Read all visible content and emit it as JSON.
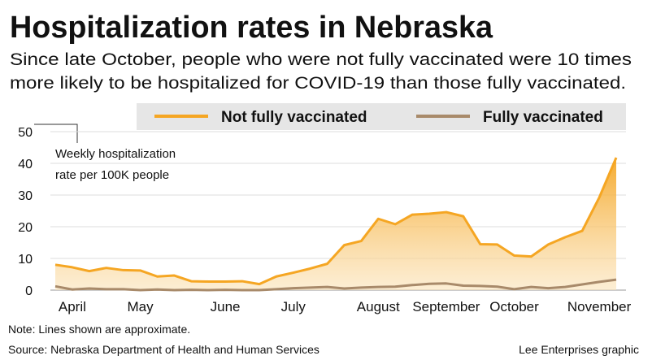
{
  "chart_data": {
    "type": "line",
    "title": "Hospitalization rates in Nebraska",
    "subtitle": [
      "Since late October, people who were not fully vaccinated were 10 times",
      "more likely to be hospitalized for COVID-19 than those fully vaccinated."
    ],
    "ylabel": [
      "Weekly hospitalization",
      "rate per 100K people"
    ],
    "categories": [
      null,
      "April",
      null,
      null,
      null,
      "May",
      null,
      null,
      null,
      null,
      "June",
      null,
      null,
      null,
      "July",
      null,
      null,
      null,
      null,
      "August",
      null,
      null,
      null,
      "September",
      null,
      null,
      null,
      "October",
      null,
      null,
      null,
      null,
      "November",
      null
    ],
    "series": [
      {
        "name": "Not fully vaccinated",
        "color": "#f5a623",
        "values": [
          8,
          7.2,
          6,
          7,
          6.3,
          6.2,
          4.3,
          4.6,
          2.8,
          2.7,
          2.7,
          2.8,
          1.9,
          4.3,
          5.5,
          6.8,
          8.3,
          14.2,
          15.5,
          22.5,
          20.8,
          23.8,
          24.1,
          24.6,
          23.3,
          14.5,
          14.4,
          10.9,
          10.6,
          14.4,
          16.7,
          18.7,
          29.2,
          41.8
        ]
      },
      {
        "name": "Fully vaccinated",
        "color": "#a88a6a",
        "values": [
          1.2,
          0.2,
          0.5,
          0.3,
          0.3,
          0,
          0.2,
          0,
          0.1,
          0,
          0.1,
          0,
          0,
          0.3,
          0.6,
          0.8,
          1.0,
          0.5,
          0.8,
          1.0,
          1.1,
          1.6,
          2.0,
          2.1,
          1.4,
          1.3,
          1.1,
          0.3,
          1.0,
          0.6,
          1.0,
          1.8,
          2.6,
          3.3
        ]
      }
    ],
    "ylim": [
      0,
      50
    ],
    "yticks": [
      0,
      10,
      20,
      30,
      40,
      50
    ],
    "grid": true,
    "note": "Note: Lines shown are approximate.",
    "source": "Source: Nebraska Department of Health and Human Services",
    "credit": "Lee Enterprises graphic"
  }
}
